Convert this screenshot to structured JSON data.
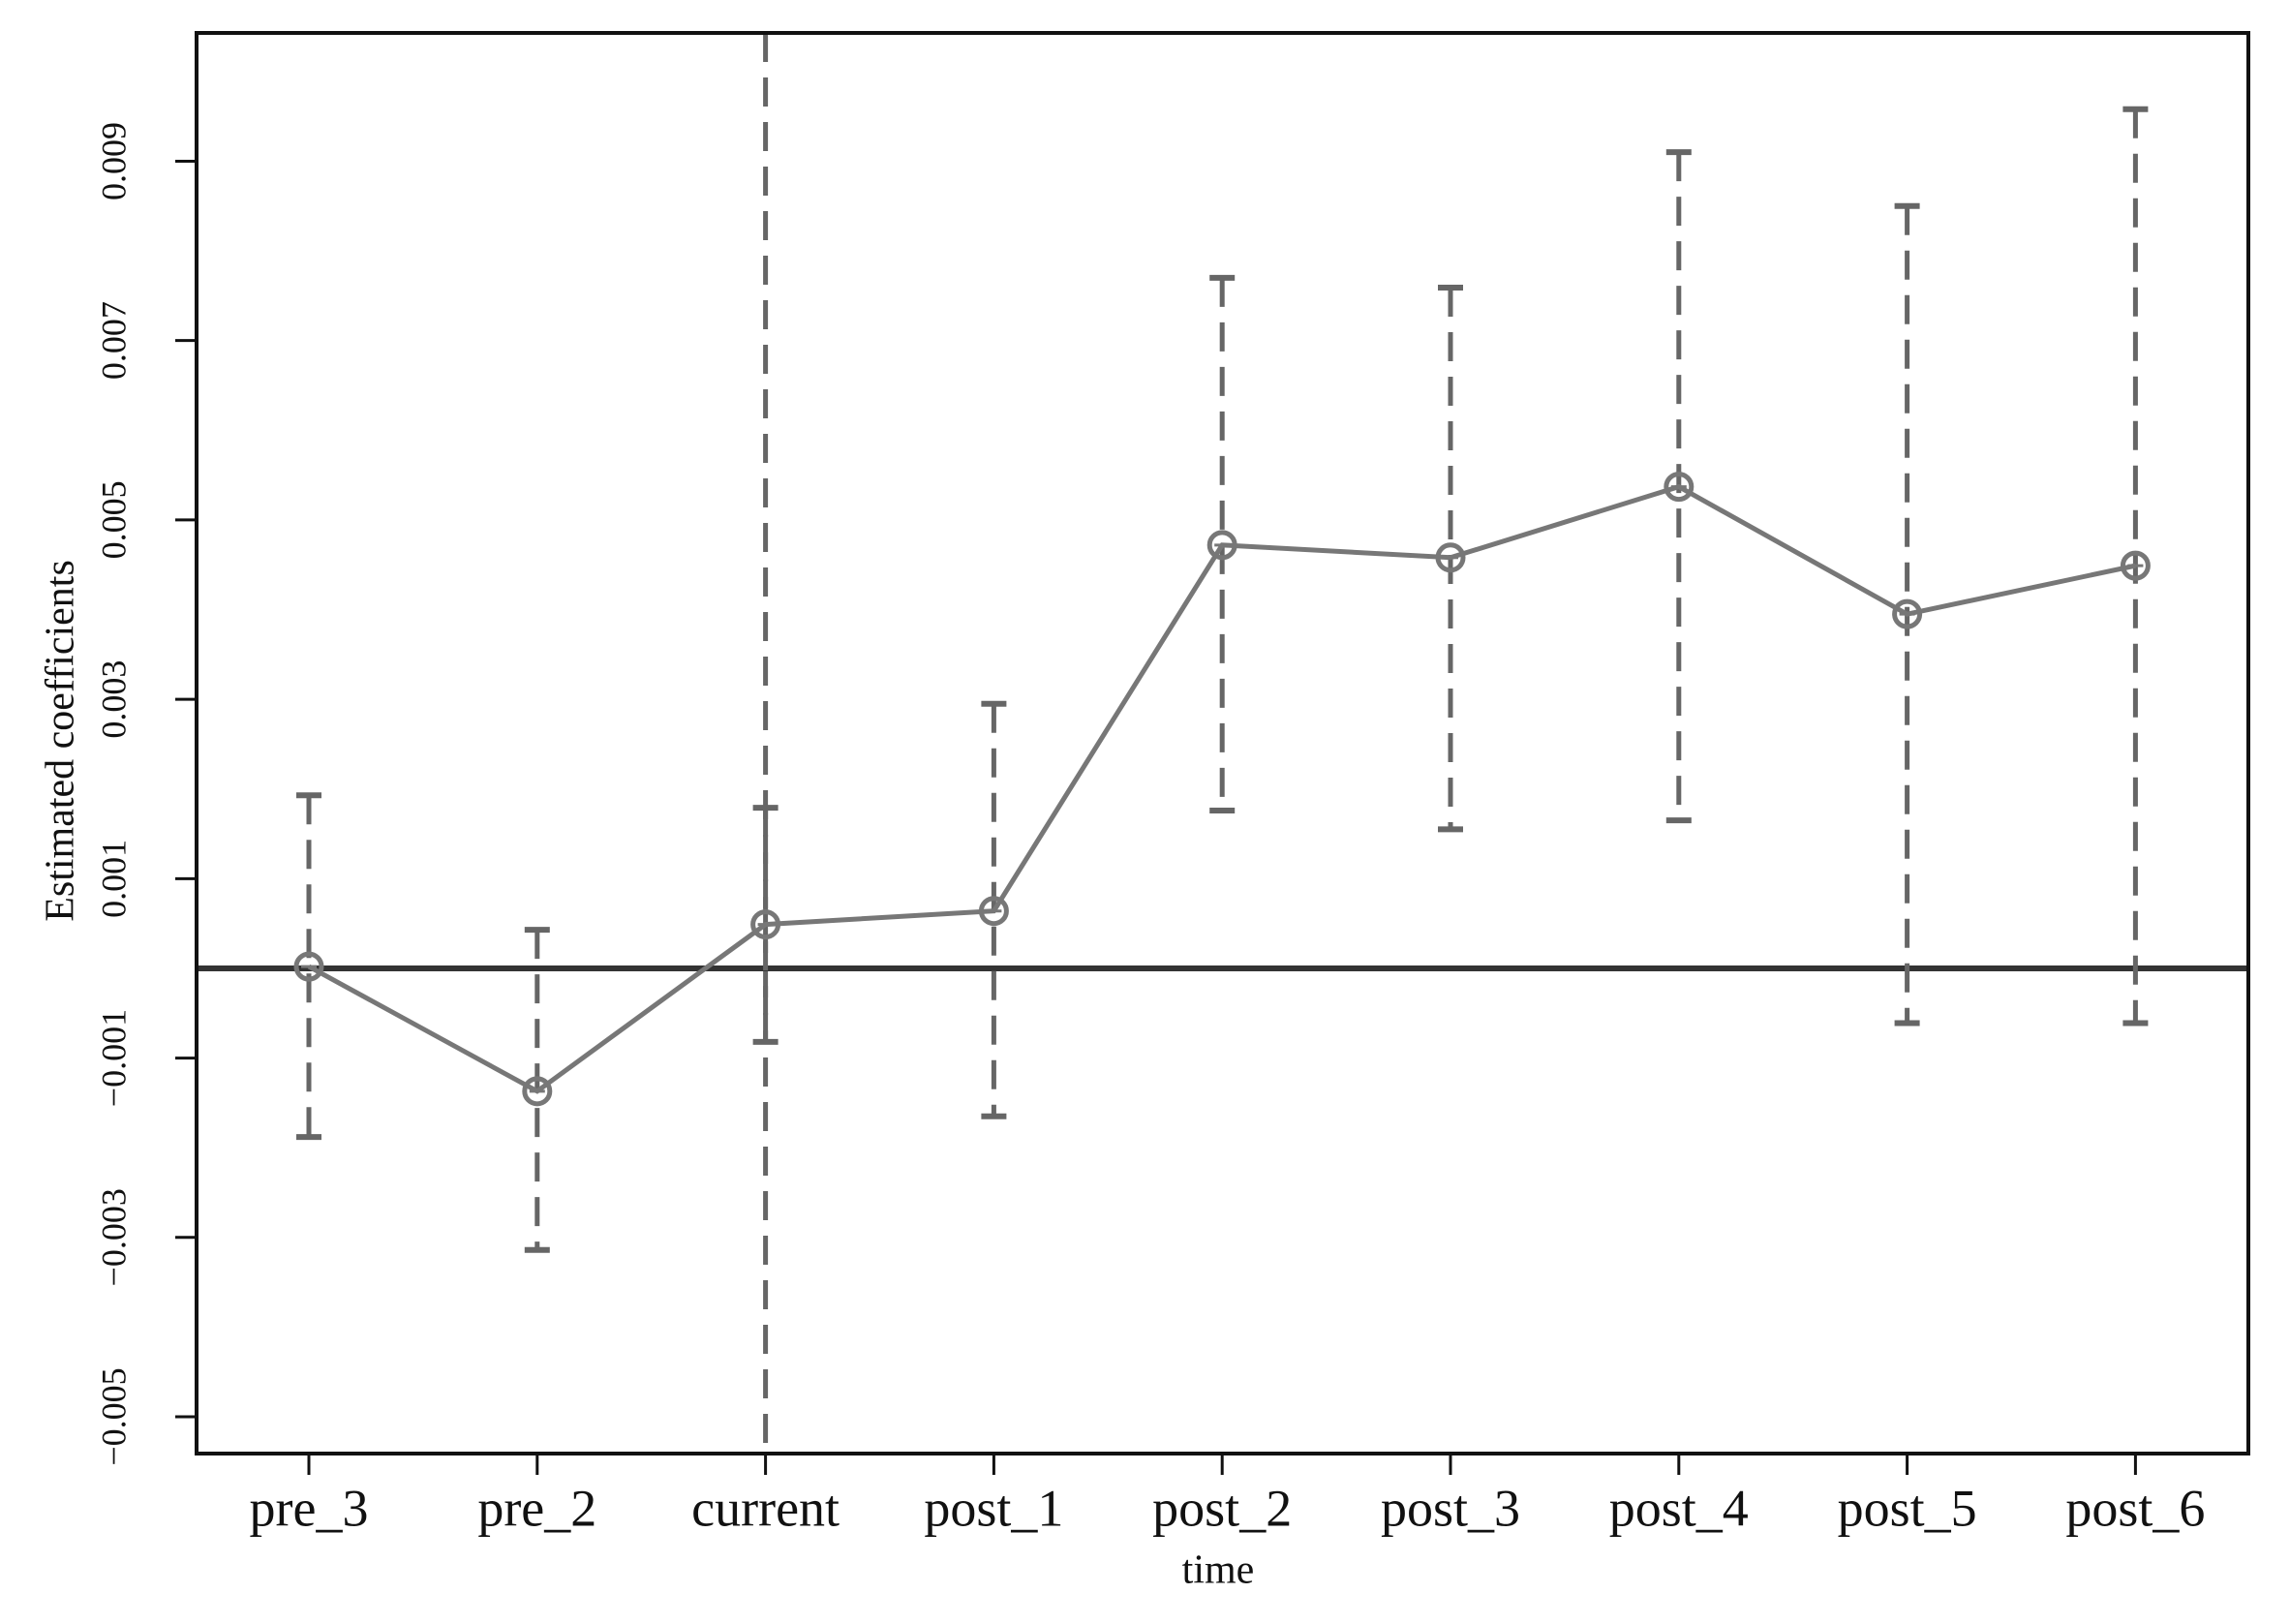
{
  "chart_data": {
    "type": "line",
    "x_label": "time",
    "y_label": "Estimated coefficients",
    "categories": [
      "pre_3",
      "pre_2",
      "current",
      "post_1",
      "post_2",
      "post_3",
      "post_4",
      "post_5",
      "post_6"
    ],
    "values": [
      2e-05,
      -0.00137,
      0.00049,
      0.00064,
      0.00472,
      0.00458,
      0.00537,
      0.00395,
      0.00449
    ],
    "lower": [
      -0.00188,
      -0.00314,
      -0.00082,
      -0.00165,
      0.00176,
      0.00155,
      0.00165,
      -0.00061,
      -0.00061
    ],
    "upper": [
      0.00193,
      0.00043,
      0.00179,
      0.00295,
      0.0077,
      0.00759,
      0.0091,
      0.0085,
      0.00958
    ],
    "color": "#777777",
    "error_color": "#666666",
    "reference_line_y": 0,
    "reference_line_x": "current",
    "ylim": [
      -0.00541,
      0.01043
    ],
    "yticks": [
      {
        "value": -0.005,
        "label": "−0.005"
      },
      {
        "value": -0.003,
        "label": "−0.003"
      },
      {
        "value": -0.001,
        "label": "−0.001"
      },
      0.001,
      0.003,
      0.005,
      0.007,
      0.009
    ]
  }
}
